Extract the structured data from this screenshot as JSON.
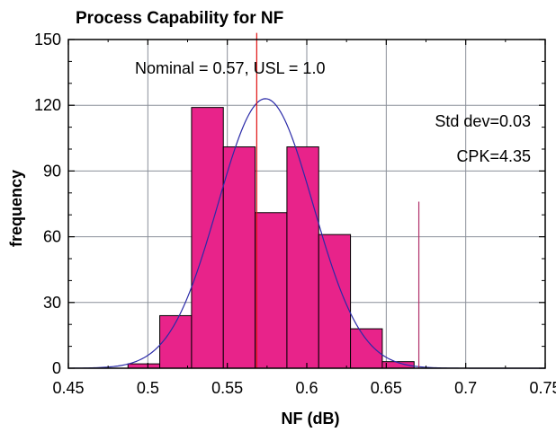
{
  "chart_data": {
    "type": "bar",
    "title": "Process Capability for NF",
    "xlabel": "NF (dB)",
    "ylabel": "frequency",
    "xlim": [
      0.45,
      0.75
    ],
    "ylim": [
      0,
      150
    ],
    "x_ticks": [
      0.45,
      0.5,
      0.55,
      0.6,
      0.65,
      0.7,
      0.75
    ],
    "x_tick_labels": [
      "0.45",
      "0.5",
      "0.55",
      "0.6",
      "0.65",
      "0.7",
      "0.75"
    ],
    "y_ticks": [
      0,
      30,
      60,
      90,
      120,
      150
    ],
    "y_tick_labels": [
      "0",
      "30",
      "60",
      "90",
      "120",
      "150"
    ],
    "grid": true,
    "bin_edges": [
      0.4875,
      0.5075,
      0.5275,
      0.5475,
      0.5675,
      0.5875,
      0.6075,
      0.6275,
      0.6475,
      0.6675
    ],
    "values": [
      2,
      24,
      119,
      101,
      71,
      101,
      61,
      18,
      3
    ],
    "bar_color": "#e8238a",
    "bar_edge_color": "#000000",
    "normal_curve": {
      "mean": 0.574,
      "std": 0.03,
      "peak": 123,
      "color": "#2a2aa8"
    },
    "reference_lines": [
      {
        "x": 0.5685,
        "y_top": 153,
        "color": "#e01010"
      },
      {
        "x": 0.6705,
        "y_top": 76,
        "color": "#b0306a"
      }
    ],
    "annotations": {
      "nominal_usl": "Nominal = 0.57, USL = 1.0",
      "std_dev": "Std dev=0.03",
      "cpk": "CPK=4.35"
    }
  }
}
